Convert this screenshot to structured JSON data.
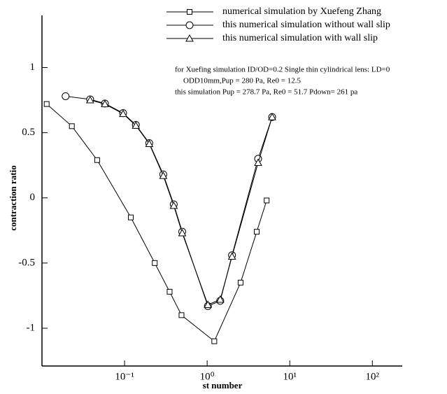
{
  "chart_data": {
    "type": "line",
    "xscale": "log",
    "x_label": "st number",
    "y_label": "contraction ratio",
    "annotations": [
      "for Xuefing simulation ID/OD=0.2 Single thin cylindrical lens: LD=0",
      "ODD10mm,Pup = 280 Pa, Re0 = 12.5",
      "this simulation Pup = 278.7 Pa, Re0 = 51.7 Pdown= 261 pa"
    ],
    "xlim": [
      0.01,
      230
    ],
    "ylim": [
      -1.29,
      1.4
    ],
    "xticks": [
      {
        "value": 0.1,
        "label": "10⁻¹"
      },
      {
        "value": 1,
        "label": "10⁰"
      },
      {
        "value": 10,
        "label": "10¹"
      },
      {
        "value": 100,
        "label": "10²"
      }
    ],
    "yticks": [
      -1,
      -0.5,
      0,
      0.5,
      1
    ],
    "series": [
      {
        "name": "numerical simulation by Xuefeng Zhang",
        "color": "#000000",
        "marker": "square",
        "x": [
          0.0114,
          0.023,
          0.0466,
          0.119,
          0.232,
          0.351,
          0.489,
          1.22,
          2.54,
          3.98,
          5.25
        ],
        "values": [
          0.72,
          0.55,
          0.29,
          -0.15,
          -0.5,
          -0.72,
          -0.9,
          -1.1,
          -0.65,
          -0.26,
          -0.02
        ]
      },
      {
        "name": "this numerical simulation without wall slip",
        "color": "#000000",
        "marker": "circle",
        "x": [
          0.0193,
          0.0383,
          0.0578,
          0.096,
          0.137,
          0.199,
          0.294,
          0.394,
          0.499,
          1.02,
          1.44,
          2.0,
          4.14,
          6.12
        ],
        "values": [
          0.78,
          0.756,
          0.724,
          0.65,
          0.56,
          0.42,
          0.18,
          -0.05,
          -0.26,
          -0.83,
          -0.79,
          -0.44,
          0.3,
          0.62
        ]
      },
      {
        "name": "this numerical simulation with wall slip",
        "color": "#000000",
        "marker": "triangle",
        "x": [
          0.0383,
          0.0578,
          0.096,
          0.137,
          0.199,
          0.294,
          0.394,
          0.499,
          1.02,
          1.44,
          2.0,
          4.14,
          6.12
        ],
        "values": [
          0.75,
          0.72,
          0.645,
          0.555,
          0.415,
          0.17,
          -0.06,
          -0.27,
          -0.82,
          -0.78,
          -0.45,
          0.27,
          0.62
        ]
      }
    ]
  }
}
